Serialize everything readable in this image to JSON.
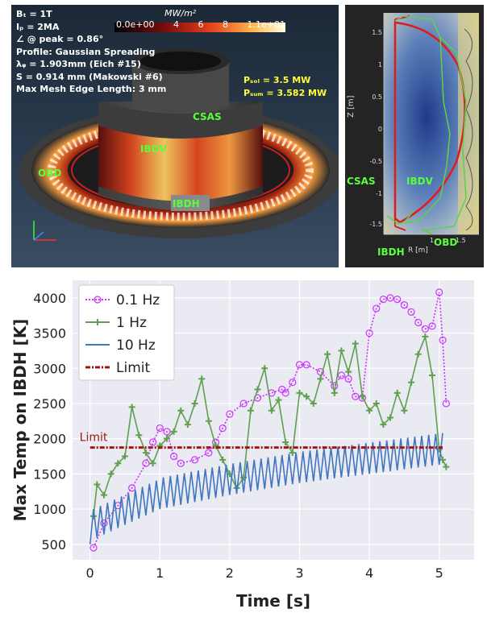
{
  "render3d": {
    "info_lines": [
      "Bₜ = 1T",
      "Iₚ = 2MA",
      "∠ @ peak = 0.86°",
      "Profile: Gaussian Spreading",
      "λᵩ = 1.903mm (Eich #15)",
      "S = 0.914 mm (Makowski #6)",
      "Max Mesh Edge Length: 3 mm"
    ],
    "colorbar": {
      "title": "MW/m²",
      "ticks": [
        "0.0e+00",
        "4",
        "6",
        "8",
        "1.1e+01"
      ]
    },
    "psol": "Pₛₒₗ = 3.5 MW",
    "psum": "Pₛᵤₘ = 3.582 MW",
    "labels": {
      "csas": "CSAS",
      "ibdv": "IBDV",
      "obd": "OBD",
      "ibdh": "IBDH"
    },
    "label_color": "#59ff3a"
  },
  "psi": {
    "ylabel": "Z [m]",
    "xlabel": "R [m]",
    "yticks": [
      "1.5",
      "1",
      "0.5",
      "0",
      "-0.5",
      "-1",
      "-1.5"
    ],
    "xticks": [
      "1",
      "1.5"
    ],
    "labels": {
      "csas": "CSAS",
      "ibdv": "IBDV",
      "ibdh": "IBDH",
      "obd": "OBD"
    }
  },
  "chart_data": {
    "type": "line",
    "xlabel": "Time [s]",
    "ylabel": "Max Temp on IBDH [K]",
    "xlim": [
      -0.25,
      5.5
    ],
    "ylim": [
      280,
      4250
    ],
    "xticks": [
      0,
      1,
      2,
      3,
      4,
      5
    ],
    "yticks": [
      500,
      1000,
      1500,
      2000,
      2500,
      3000,
      3500,
      4000
    ],
    "grid": true,
    "legend_position": "top-left",
    "limit_label": "Limit",
    "series": [
      {
        "name": "0.1 Hz",
        "color": "#cc33ff",
        "style": "dotted",
        "marker": "circle",
        "x": [
          0.05,
          0.2,
          0.4,
          0.6,
          0.8,
          0.9,
          1.0,
          1.1,
          1.2,
          1.3,
          1.5,
          1.7,
          1.8,
          1.9,
          2.0,
          2.2,
          2.4,
          2.6,
          2.75,
          2.8,
          2.9,
          3.0,
          3.1,
          3.3,
          3.5,
          3.6,
          3.7,
          3.8,
          3.9,
          4.0,
          4.1,
          4.2,
          4.3,
          4.4,
          4.5,
          4.6,
          4.7,
          4.8,
          4.9,
          5.0,
          5.05,
          5.1
        ],
        "y": [
          450,
          800,
          1050,
          1300,
          1650,
          1950,
          2150,
          2100,
          1750,
          1650,
          1700,
          1800,
          1950,
          2150,
          2350,
          2500,
          2580,
          2650,
          2700,
          2650,
          2800,
          3050,
          3050,
          2950,
          2750,
          2900,
          2850,
          2600,
          2580,
          3500,
          3850,
          3980,
          4000,
          3980,
          3900,
          3800,
          3650,
          3560,
          3600,
          4080,
          3400,
          2500
        ]
      },
      {
        "name": "1 Hz",
        "color": "#5fa050",
        "style": "solid",
        "marker": "plus",
        "x": [
          0.05,
          0.1,
          0.2,
          0.3,
          0.4,
          0.5,
          0.6,
          0.7,
          0.8,
          0.9,
          1.0,
          1.1,
          1.2,
          1.3,
          1.4,
          1.5,
          1.6,
          1.7,
          1.8,
          1.9,
          2.0,
          2.1,
          2.2,
          2.3,
          2.4,
          2.5,
          2.6,
          2.7,
          2.8,
          2.9,
          3.0,
          3.1,
          3.2,
          3.3,
          3.4,
          3.5,
          3.6,
          3.7,
          3.8,
          3.9,
          4.0,
          4.1,
          4.2,
          4.3,
          4.4,
          4.5,
          4.6,
          4.7,
          4.8,
          4.9,
          5.0,
          5.05,
          5.1
        ],
        "y": [
          900,
          1350,
          1200,
          1500,
          1650,
          1750,
          2450,
          2050,
          1800,
          1650,
          1900,
          2000,
          2100,
          2400,
          2200,
          2500,
          2850,
          2250,
          1900,
          1700,
          1500,
          1300,
          1450,
          2400,
          2700,
          3000,
          2400,
          2550,
          1950,
          1800,
          2650,
          2600,
          2500,
          2850,
          3200,
          2650,
          3250,
          2950,
          3350,
          2600,
          2400,
          2500,
          2200,
          2300,
          2650,
          2400,
          2800,
          3200,
          3450,
          2900,
          1850,
          1700,
          1600
        ]
      },
      {
        "name": "10 Hz",
        "color": "#3f76bd",
        "style": "solid",
        "marker": "none",
        "t0": 0.0,
        "t1": 5.05,
        "period": 0.1,
        "base_low": 500,
        "base_floor": 750,
        "amplitude": 450,
        "envelope_top": [
          [
            0.0,
            1000
          ],
          [
            1.0,
            1450
          ],
          [
            2.0,
            1650
          ],
          [
            3.0,
            1820
          ],
          [
            4.0,
            1950
          ],
          [
            5.0,
            2080
          ]
        ]
      },
      {
        "name": "Limit",
        "color": "#a31414",
        "style": "dashdot",
        "marker": "none",
        "x": [
          0.0,
          5.05
        ],
        "y": [
          1875,
          1875
        ]
      }
    ]
  }
}
